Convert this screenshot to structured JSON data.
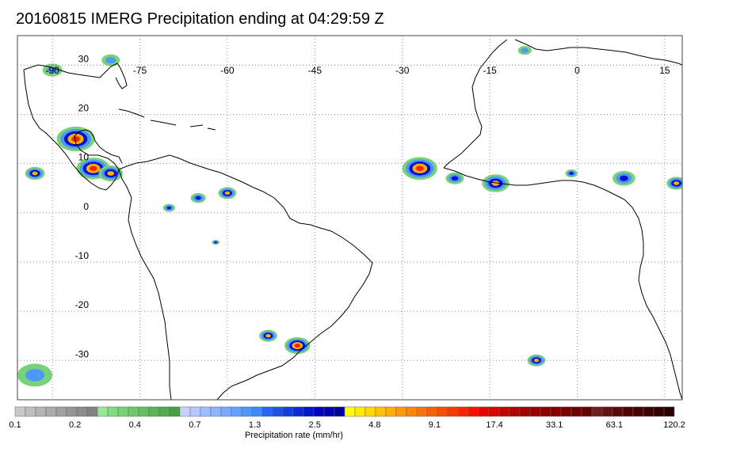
{
  "title": "20160815 IMERG Precipitation ending at 04:29:59 Z",
  "map": {
    "lon_range": [
      -96,
      18
    ],
    "lat_range": [
      -38,
      36
    ],
    "lon_ticks": [
      "-90",
      "-75",
      "-60",
      "-45",
      "-30",
      "-15",
      "0",
      "15"
    ],
    "lon_tick_values": [
      -90,
      -75,
      -60,
      -45,
      -30,
      -15,
      0,
      15
    ],
    "lat_ticks": [
      "30",
      "20",
      "10",
      "0",
      "-10",
      "-20",
      "-30"
    ],
    "lat_tick_values": [
      30,
      20,
      10,
      0,
      -10,
      -20,
      -30
    ],
    "gridlines": "dotted",
    "coastline_color": "#000000",
    "precip_cells": [
      {
        "lon": -86,
        "lat": 15,
        "r": 2.5,
        "level": 4
      },
      {
        "lon": -83,
        "lat": 9,
        "r": 2.2,
        "level": 4
      },
      {
        "lon": -80,
        "lat": 8,
        "r": 1.6,
        "level": 3
      },
      {
        "lon": -93,
        "lat": 8,
        "r": 1.3,
        "level": 3
      },
      {
        "lon": -60,
        "lat": 4,
        "r": 1.2,
        "level": 3
      },
      {
        "lon": -65,
        "lat": 3,
        "r": 1.0,
        "level": 2
      },
      {
        "lon": -70,
        "lat": 1,
        "r": 0.8,
        "level": 2
      },
      {
        "lon": -62,
        "lat": -6,
        "r": 0.5,
        "level": 2
      },
      {
        "lon": -53,
        "lat": -25,
        "r": 1.2,
        "level": 3
      },
      {
        "lon": -48,
        "lat": -27,
        "r": 1.7,
        "level": 4
      },
      {
        "lon": -27,
        "lat": 9,
        "r": 2.3,
        "level": 4
      },
      {
        "lon": -14,
        "lat": 6,
        "r": 1.8,
        "level": 3
      },
      {
        "lon": -21,
        "lat": 7,
        "r": 1.2,
        "level": 2
      },
      {
        "lon": 17,
        "lat": 6,
        "r": 1.3,
        "level": 3
      },
      {
        "lon": 8,
        "lat": 7,
        "r": 1.5,
        "level": 2
      },
      {
        "lon": -1,
        "lat": 8,
        "r": 0.8,
        "level": 2
      },
      {
        "lon": -7,
        "lat": -30,
        "r": 1.2,
        "level": 3
      },
      {
        "lon": -80,
        "lat": 31,
        "r": 1.2,
        "level": 1
      },
      {
        "lon": -90,
        "lat": 29,
        "r": 1.3,
        "level": 1
      },
      {
        "lon": -93,
        "lat": -33,
        "r": 2.3,
        "level": 1
      },
      {
        "lon": -9,
        "lat": 33,
        "r": 0.9,
        "level": 1
      }
    ]
  },
  "colorbar": {
    "colors": [
      "#c8c8c8",
      "#bebebe",
      "#b4b4b4",
      "#aaaaaa",
      "#a0a0a0",
      "#969696",
      "#8c8c8c",
      "#828282",
      "#96e696",
      "#82dc82",
      "#78d278",
      "#6ec86e",
      "#64be64",
      "#5ab45a",
      "#50aa50",
      "#46a046",
      "#c8d2ff",
      "#b4c8ff",
      "#a0beff",
      "#8cb4ff",
      "#78aaff",
      "#64a0ff",
      "#5096ff",
      "#3c8cff",
      "#2864ff",
      "#1e50f0",
      "#143ce6",
      "#0a28dc",
      "#0014d2",
      "#0000c8",
      "#0000b4",
      "#0000a0",
      "#ffff00",
      "#ffeb00",
      "#ffd700",
      "#ffc300",
      "#ffaf00",
      "#ff9b00",
      "#ff8700",
      "#ff7300",
      "#ff5f00",
      "#ff4b00",
      "#ff3700",
      "#ff2300",
      "#ff0f00",
      "#f00000",
      "#dc0000",
      "#c80000",
      "#b40000",
      "#a00000",
      "#960000",
      "#8c0000",
      "#820000",
      "#780000",
      "#6e0000",
      "#640000",
      "#6e1e1e",
      "#641414",
      "#5a0a0a",
      "#500000",
      "#460000",
      "#3c0000",
      "#320000",
      "#280000"
    ],
    "labels": [
      "0.1",
      "0.2",
      "0.4",
      "0.7",
      "1.3",
      "2.5",
      "4.8",
      "9.1",
      "17.4",
      "33.1",
      "63.1",
      "120.2"
    ],
    "label": "Precipitation rate (mm/hr)"
  }
}
